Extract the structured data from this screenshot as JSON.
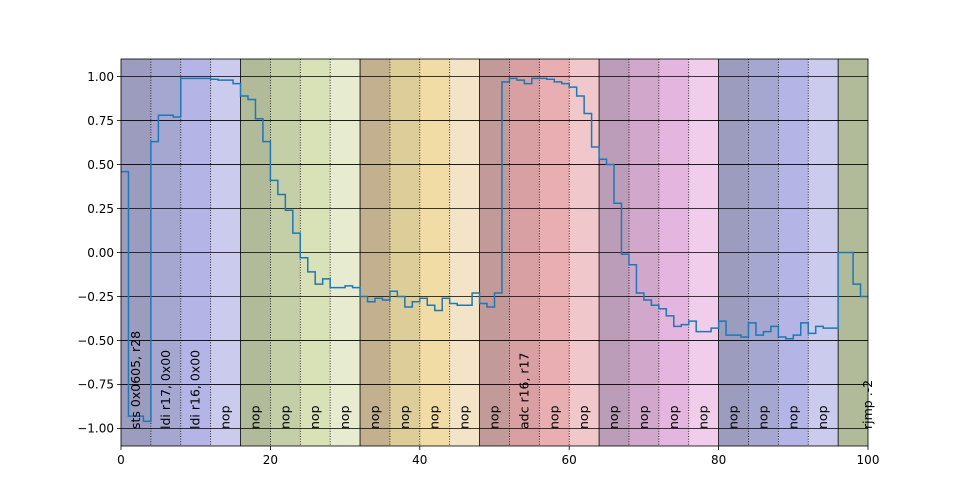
{
  "chart_data": {
    "type": "line",
    "step": true,
    "title": "",
    "xlabel": "",
    "ylabel": "",
    "xlim": [
      0,
      100
    ],
    "ylim": [
      -1.1,
      1.1
    ],
    "xticks": [
      0,
      20,
      40,
      60,
      80,
      100
    ],
    "yticks": [
      -1.0,
      -0.75,
      -0.5,
      -0.25,
      0.0,
      0.25,
      0.5,
      0.75,
      1.0
    ],
    "grid": "horizontal",
    "series": [
      {
        "color": "#1f77b4",
        "x": [
          0,
          1,
          2,
          3,
          4,
          5,
          6,
          7,
          8,
          9,
          10,
          11,
          12,
          13,
          14,
          15,
          16,
          17,
          18,
          19,
          20,
          21,
          22,
          23,
          24,
          25,
          26,
          27,
          28,
          29,
          30,
          31,
          32,
          33,
          34,
          35,
          36,
          37,
          38,
          39,
          40,
          41,
          42,
          43,
          44,
          45,
          46,
          47,
          48,
          49,
          50,
          51,
          52,
          53,
          54,
          55,
          56,
          57,
          58,
          59,
          60,
          61,
          62,
          63,
          64,
          65,
          66,
          67,
          68,
          69,
          70,
          71,
          72,
          73,
          74,
          75,
          76,
          77,
          78,
          79,
          80,
          81,
          82,
          83,
          84,
          85,
          86,
          87,
          88,
          89,
          90,
          91,
          92,
          93,
          94,
          95,
          96,
          97,
          98,
          99,
          100
        ],
        "y": [
          0.46,
          -0.93,
          -0.93,
          -0.96,
          0.63,
          0.78,
          0.78,
          0.77,
          0.99,
          0.99,
          0.99,
          0.99,
          0.985,
          0.98,
          0.98,
          0.96,
          0.89,
          0.87,
          0.76,
          0.63,
          0.41,
          0.33,
          0.24,
          0.11,
          -0.03,
          -0.11,
          -0.18,
          -0.15,
          -0.2,
          -0.2,
          -0.19,
          -0.2,
          -0.25,
          -0.28,
          -0.26,
          -0.27,
          -0.22,
          -0.25,
          -0.31,
          -0.28,
          -0.26,
          -0.3,
          -0.33,
          -0.26,
          -0.29,
          -0.3,
          -0.3,
          -0.23,
          -0.29,
          -0.31,
          -0.23,
          0.97,
          0.99,
          0.98,
          0.96,
          0.99,
          0.99,
          0.985,
          0.97,
          0.96,
          0.94,
          0.89,
          0.79,
          0.6,
          0.53,
          0.5,
          0.28,
          -0.01,
          -0.07,
          -0.23,
          -0.27,
          -0.3,
          -0.32,
          -0.36,
          -0.42,
          -0.41,
          -0.39,
          -0.45,
          -0.45,
          -0.43,
          -0.39,
          -0.47,
          -0.47,
          -0.48,
          -0.4,
          -0.47,
          -0.45,
          -0.42,
          -0.48,
          -0.49,
          -0.47,
          -0.4,
          -0.46,
          -0.42,
          -0.43,
          -0.43,
          0.0,
          0.0,
          -0.18,
          -0.25,
          -0.25
        ]
      }
    ],
    "bands": [
      {
        "x0": 0,
        "x1": 4,
        "color": "#9c9cbf"
      },
      {
        "x0": 4,
        "x1": 8,
        "color": "#a6a7d1"
      },
      {
        "x0": 8,
        "x1": 12,
        "color": "#b4b5e6"
      },
      {
        "x0": 12,
        "x1": 16,
        "color": "#cbcbee"
      },
      {
        "x0": 16,
        "x1": 20,
        "color": "#b1bb99"
      },
      {
        "x0": 20,
        "x1": 24,
        "color": "#c4cea7"
      },
      {
        "x0": 24,
        "x1": 28,
        "color": "#d8e2b6"
      },
      {
        "x0": 28,
        "x1": 32,
        "color": "#e7ebcf"
      },
      {
        "x0": 32,
        "x1": 36,
        "color": "#c3b08f"
      },
      {
        "x0": 36,
        "x1": 40,
        "color": "#ddcd99"
      },
      {
        "x0": 40,
        "x1": 44,
        "color": "#f1dca6"
      },
      {
        "x0": 44,
        "x1": 48,
        "color": "#f3e4c8"
      },
      {
        "x0": 48,
        "x1": 52,
        "color": "#c29a99"
      },
      {
        "x0": 52,
        "x1": 56,
        "color": "#d9a0a3"
      },
      {
        "x0": 56,
        "x1": 60,
        "color": "#e8aeb2"
      },
      {
        "x0": 60,
        "x1": 64,
        "color": "#f0c8cb"
      },
      {
        "x0": 64,
        "x1": 68,
        "color": "#bc9db9"
      },
      {
        "x0": 68,
        "x1": 72,
        "color": "#d1a7cb"
      },
      {
        "x0": 72,
        "x1": 76,
        "color": "#e4b5df"
      },
      {
        "x0": 76,
        "x1": 80,
        "color": "#efcdeb"
      },
      {
        "x0": 80,
        "x1": 84,
        "color": "#9c9cbf"
      },
      {
        "x0": 84,
        "x1": 88,
        "color": "#a6a7d1"
      },
      {
        "x0": 88,
        "x1": 92,
        "color": "#b4b5e6"
      },
      {
        "x0": 92,
        "x1": 96,
        "color": "#cbcbee"
      },
      {
        "x0": 96,
        "x1": 100,
        "color": "#b1bb99"
      }
    ],
    "annotations": [
      {
        "x": 2,
        "text": "sts 0x0605, r28"
      },
      {
        "x": 6,
        "text": "ldi r17, 0x00"
      },
      {
        "x": 10,
        "text": "ldi r16, 0x00"
      },
      {
        "x": 14,
        "text": "nop"
      },
      {
        "x": 18,
        "text": "nop"
      },
      {
        "x": 22,
        "text": "nop"
      },
      {
        "x": 26,
        "text": "nop"
      },
      {
        "x": 30,
        "text": "nop"
      },
      {
        "x": 34,
        "text": "nop"
      },
      {
        "x": 38,
        "text": "nop"
      },
      {
        "x": 42,
        "text": "nop"
      },
      {
        "x": 46,
        "text": "nop"
      },
      {
        "x": 50,
        "text": "nop"
      },
      {
        "x": 54,
        "text": "adc r16, r17"
      },
      {
        "x": 58,
        "text": "nop"
      },
      {
        "x": 62,
        "text": "nop"
      },
      {
        "x": 66,
        "text": "nop"
      },
      {
        "x": 70,
        "text": "nop"
      },
      {
        "x": 74,
        "text": "nop"
      },
      {
        "x": 78,
        "text": "nop"
      },
      {
        "x": 82,
        "text": "nop"
      },
      {
        "x": 86,
        "text": "nop"
      },
      {
        "x": 90,
        "text": "nop"
      },
      {
        "x": 94,
        "text": "nop"
      },
      {
        "x": 100,
        "text": "rjmp .-2"
      }
    ]
  }
}
